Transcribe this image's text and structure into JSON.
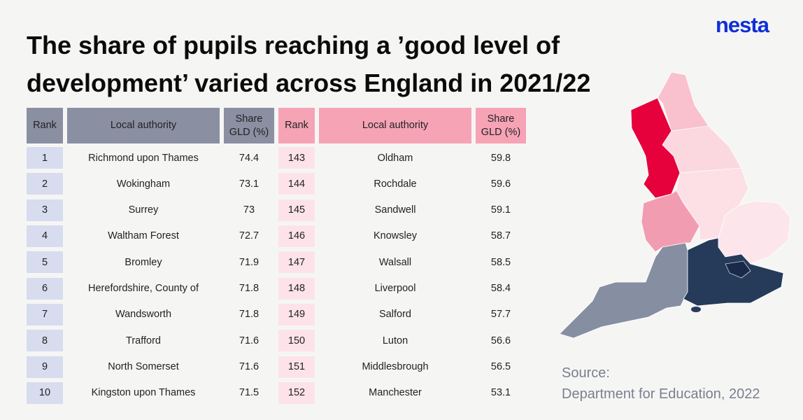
{
  "title": "The share of pupils reaching a ’good level of development’ varied across England in 2021/22",
  "logo": "nesta",
  "source": {
    "line1": "Source:",
    "line2": "Department for Education, 2022"
  },
  "colors": {
    "top_header": "#8a8fa2",
    "top_rank_cell": "#d7dcee",
    "bottom_header": "#f6a3b6",
    "bottom_rank_cell": "#fde3e9",
    "map_north_west": "#e6003c",
    "map_north_east": "#f8c1cd",
    "map_yorkshire": "#fbd8df",
    "map_east_midlands": "#fce0e6",
    "map_west_midlands": "#f29cb1",
    "map_east": "#fde6eb",
    "map_south_west": "#868ea2",
    "map_south_east": "#263a5a",
    "map_london": "#19294a"
  },
  "chart_data": {
    "type": "table",
    "title": "The share of pupils reaching a ’good level of development’ varied across England in 2021/22",
    "tables": [
      {
        "columns": [
          "Rank",
          "Local authority",
          "Share GLD (%)"
        ],
        "rows": [
          [
            "1",
            "Richmond upon Thames",
            "74.4"
          ],
          [
            "2",
            "Wokingham",
            "73.1"
          ],
          [
            "3",
            "Surrey",
            "73"
          ],
          [
            "4",
            "Waltham Forest",
            "72.7"
          ],
          [
            "5",
            "Bromley",
            "71.9"
          ],
          [
            "6",
            "Herefordshire, County of",
            "71.8"
          ],
          [
            "7",
            "Wandsworth",
            "71.8"
          ],
          [
            "8",
            "Trafford",
            "71.6"
          ],
          [
            "9",
            "North Somerset",
            "71.6"
          ],
          [
            "10",
            "Kingston upon Thames",
            "71.5"
          ]
        ]
      },
      {
        "columns": [
          "Rank",
          "Local authority",
          "Share GLD (%)"
        ],
        "rows": [
          [
            "143",
            "Oldham",
            "59.8"
          ],
          [
            "144",
            "Rochdale",
            "59.6"
          ],
          [
            "145",
            "Sandwell",
            "59.1"
          ],
          [
            "146",
            "Knowsley",
            "58.7"
          ],
          [
            "147",
            "Walsall",
            "58.5"
          ],
          [
            "148",
            "Liverpool",
            "58.4"
          ],
          [
            "149",
            "Salford",
            "57.7"
          ],
          [
            "150",
            "Luton",
            "56.6"
          ],
          [
            "151",
            "Middlesbrough",
            "56.5"
          ],
          [
            "152",
            "Manchester",
            "53.1"
          ]
        ]
      }
    ]
  }
}
